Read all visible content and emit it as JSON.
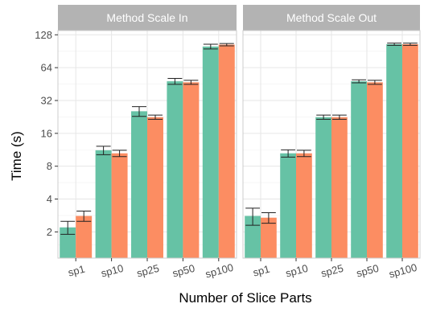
{
  "chart_data": {
    "type": "bar",
    "xlabel": "Number of Slice Parts",
    "ylabel": "Time (s)",
    "y_scale": "log2",
    "ylim": [
      1.15,
      140
    ],
    "yticks": [
      2,
      4,
      8,
      16,
      32,
      64,
      128
    ],
    "categories": [
      "sp1",
      "sp10",
      "sp25",
      "sp50",
      "sp100"
    ],
    "grid": true,
    "legend": "none",
    "colors": [
      "#66c2a5",
      "#fc8d62"
    ],
    "panels": [
      {
        "title": "Method Scale In",
        "series": [
          {
            "values": [
              2.2,
              11.2,
              25.5,
              48,
              100
            ],
            "errors": [
              0.3,
              1.0,
              2.6,
              3.0,
              5.0
            ]
          },
          {
            "values": [
              2.8,
              10.5,
              22.5,
              47,
              104
            ],
            "errors": [
              0.3,
              0.7,
              1.0,
              2.0,
              2.5
            ]
          }
        ]
      },
      {
        "title": "Method Scale Out",
        "series": [
          {
            "values": [
              2.8,
              10.5,
              22.5,
              48,
              105
            ],
            "errors": [
              0.5,
              0.8,
              1.0,
              1.5,
              2.5
            ]
          },
          {
            "values": [
              2.7,
              10.5,
              22.5,
              47,
              105
            ],
            "errors": [
              0.3,
              0.7,
              1.0,
              2.0,
              2.5
            ]
          }
        ]
      }
    ]
  }
}
